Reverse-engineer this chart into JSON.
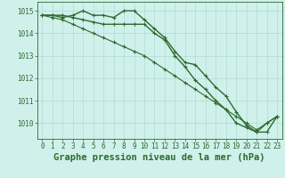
{
  "series": [
    {
      "x": [
        0,
        1,
        2,
        3,
        4,
        5,
        6,
        7,
        8,
        9,
        10,
        11,
        12,
        13,
        14,
        15,
        16,
        17,
        18,
        19,
        20,
        21,
        22,
        23
      ],
      "y": [
        1014.8,
        1014.8,
        1014.7,
        1014.8,
        1015.0,
        1014.8,
        1014.8,
        1014.7,
        1015.0,
        1015.0,
        1014.6,
        1014.2,
        1013.8,
        1013.2,
        1012.7,
        1012.6,
        1012.1,
        1011.6,
        1011.2,
        1010.5,
        1009.9,
        1009.6,
        1010.0,
        1010.3
      ],
      "color": "#2d6a2d",
      "linewidth": 1.0,
      "marker": "+"
    },
    {
      "x": [
        0,
        1,
        2,
        3,
        4,
        5,
        6,
        7,
        8,
        9,
        10,
        11,
        12,
        13,
        14,
        15,
        16,
        17,
        18,
        19,
        20,
        21,
        22,
        23
      ],
      "y": [
        1014.8,
        1014.7,
        1014.6,
        1014.4,
        1014.2,
        1014.0,
        1013.8,
        1013.6,
        1013.4,
        1013.2,
        1013.0,
        1012.7,
        1012.4,
        1012.1,
        1011.8,
        1011.5,
        1011.2,
        1010.9,
        1010.6,
        1010.3,
        1010.0,
        1009.7,
        1010.0,
        1010.3
      ],
      "color": "#2d6a2d",
      "linewidth": 0.8,
      "marker": "+"
    },
    {
      "x": [
        0,
        1,
        2,
        3,
        4,
        5,
        6,
        7,
        8,
        9,
        10,
        11,
        12,
        13,
        14,
        15,
        16,
        17,
        18,
        19,
        20,
        21,
        22,
        23
      ],
      "y": [
        1014.8,
        1014.8,
        1014.8,
        1014.7,
        1014.6,
        1014.5,
        1014.4,
        1014.4,
        1014.4,
        1014.4,
        1014.4,
        1014.0,
        1013.7,
        1013.0,
        1012.5,
        1011.9,
        1011.5,
        1011.0,
        1010.6,
        1010.0,
        1009.8,
        1009.6,
        1009.6,
        1010.3
      ],
      "color": "#2d6a2d",
      "linewidth": 1.0,
      "marker": "+"
    }
  ],
  "xlabel": "Graphe pression niveau de la mer (hPa)",
  "xlim_min": -0.5,
  "xlim_max": 23.5,
  "ylim_min": 1009.3,
  "ylim_max": 1015.4,
  "yticks": [
    1010,
    1011,
    1012,
    1013,
    1014,
    1015
  ],
  "xticks": [
    0,
    1,
    2,
    3,
    4,
    5,
    6,
    7,
    8,
    9,
    10,
    11,
    12,
    13,
    14,
    15,
    16,
    17,
    18,
    19,
    20,
    21,
    22,
    23
  ],
  "bg_color": "#cff0eb",
  "grid_color": "#aad8ce",
  "line_color": "#2d6a2d",
  "label_color": "#2d6a2d",
  "tick_fontsize": 5.5,
  "xlabel_fontsize": 7.5
}
